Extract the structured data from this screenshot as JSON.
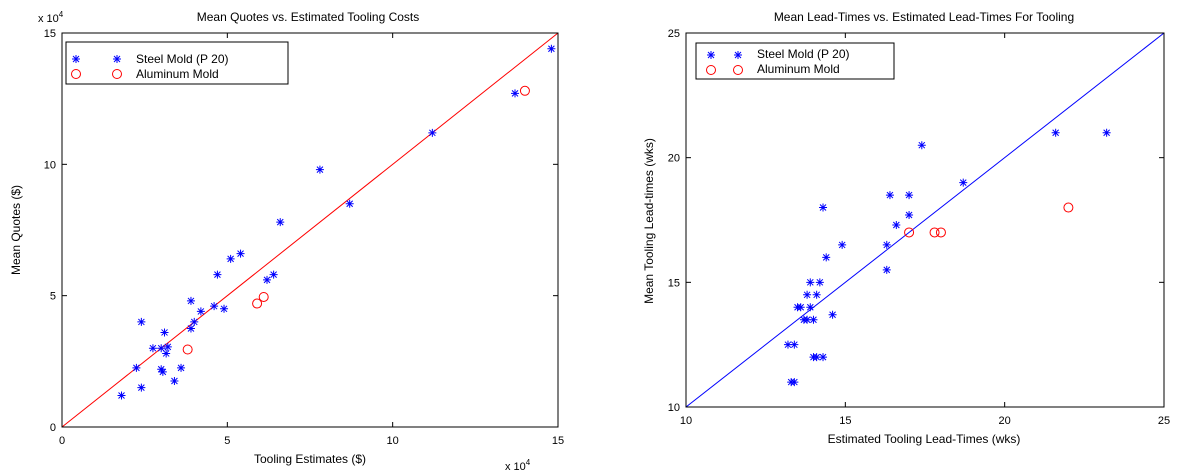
{
  "chart_data": [
    {
      "type": "scatter",
      "title": "Mean Quotes vs. Estimated Tooling Costs",
      "xlabel": "Tooling Estimates ($)",
      "ylabel": "Mean Quotes ($)",
      "xlim": [
        0,
        150000
      ],
      "ylim": [
        0,
        150000
      ],
      "x_ticks": [
        "0",
        "5",
        "10",
        "15"
      ],
      "y_ticks": [
        "0",
        "5",
        "10",
        "15"
      ],
      "x_multiplier": {
        "base": "x 10",
        "exponent": "4"
      },
      "y_multiplier": {
        "base": "x 10",
        "exponent": "4"
      },
      "legend_position": "top-left",
      "reference_line": {
        "kind": "y = x",
        "color": "#ff0000"
      },
      "series": [
        {
          "name": "Steel Mold (P 20)",
          "marker": "asterisk",
          "color": "#0000ff",
          "points": [
            [
              18000,
              12000
            ],
            [
              22500,
              22500
            ],
            [
              24000,
              40000
            ],
            [
              24000,
              15000
            ],
            [
              27500,
              30000
            ],
            [
              30000,
              30000
            ],
            [
              30000,
              22000
            ],
            [
              30500,
              21000
            ],
            [
              31000,
              36000
            ],
            [
              31500,
              28000
            ],
            [
              32000,
              30500
            ],
            [
              34000,
              17500
            ],
            [
              36000,
              22500
            ],
            [
              39000,
              37500
            ],
            [
              39000,
              48000
            ],
            [
              40000,
              40000
            ],
            [
              42000,
              44000
            ],
            [
              46000,
              46000
            ],
            [
              47000,
              58000
            ],
            [
              49000,
              45000
            ],
            [
              51000,
              64000
            ],
            [
              54000,
              66000
            ],
            [
              62000,
              56000
            ],
            [
              64000,
              58000
            ],
            [
              66000,
              78000
            ],
            [
              78000,
              98000
            ],
            [
              87000,
              85000
            ],
            [
              112000,
              112000
            ],
            [
              137000,
              127000
            ],
            [
              148000,
              144000
            ]
          ]
        },
        {
          "name": "Aluminum Mold",
          "marker": "circle",
          "color": "#ff0000",
          "points": [
            [
              38000,
              29500
            ],
            [
              59000,
              47000
            ],
            [
              61000,
              49500
            ],
            [
              140000,
              128000
            ]
          ]
        }
      ]
    },
    {
      "type": "scatter",
      "title": "Mean Lead-Times vs. Estimated Lead-Times For Tooling",
      "xlabel": "Estimated Tooling Lead-Times (wks)",
      "ylabel": "Mean Tooling Lead-times (wks)",
      "xlim": [
        10,
        25
      ],
      "ylim": [
        10,
        25
      ],
      "x_ticks": [
        "10",
        "15",
        "20",
        "25"
      ],
      "y_ticks": [
        "10",
        "15",
        "20",
        "25"
      ],
      "legend_position": "top-left",
      "reference_line": {
        "kind": "y = x",
        "color": "#0000ff"
      },
      "series": [
        {
          "name": "Steel Mold (P 20)",
          "marker": "asterisk",
          "color": "#0000ff",
          "points": [
            [
              13.2,
              12.5
            ],
            [
              13.3,
              11.0
            ],
            [
              13.4,
              11.0
            ],
            [
              13.4,
              12.5
            ],
            [
              13.5,
              14.0
            ],
            [
              13.6,
              14.0
            ],
            [
              13.7,
              13.5
            ],
            [
              13.8,
              14.5
            ],
            [
              13.8,
              13.5
            ],
            [
              13.9,
              15.0
            ],
            [
              13.9,
              14.0
            ],
            [
              14.0,
              13.5
            ],
            [
              14.0,
              12.0
            ],
            [
              14.1,
              14.5
            ],
            [
              14.1,
              12.0
            ],
            [
              14.2,
              15.0
            ],
            [
              14.3,
              12.0
            ],
            [
              14.3,
              18.0
            ],
            [
              14.4,
              16.0
            ],
            [
              14.6,
              13.7
            ],
            [
              14.9,
              16.5
            ],
            [
              16.3,
              15.5
            ],
            [
              16.3,
              16.5
            ],
            [
              16.4,
              18.5
            ],
            [
              16.6,
              17.3
            ],
            [
              17.0,
              18.5
            ],
            [
              17.0,
              17.7
            ],
            [
              17.4,
              20.5
            ],
            [
              18.7,
              19.0
            ],
            [
              21.6,
              21.0
            ],
            [
              23.2,
              21.0
            ]
          ]
        },
        {
          "name": "Aluminum Mold",
          "marker": "circle",
          "color": "#ff0000",
          "points": [
            [
              17.0,
              17.0
            ],
            [
              17.8,
              17.0
            ],
            [
              18.0,
              17.0
            ],
            [
              22.0,
              18.0
            ]
          ]
        }
      ]
    }
  ]
}
